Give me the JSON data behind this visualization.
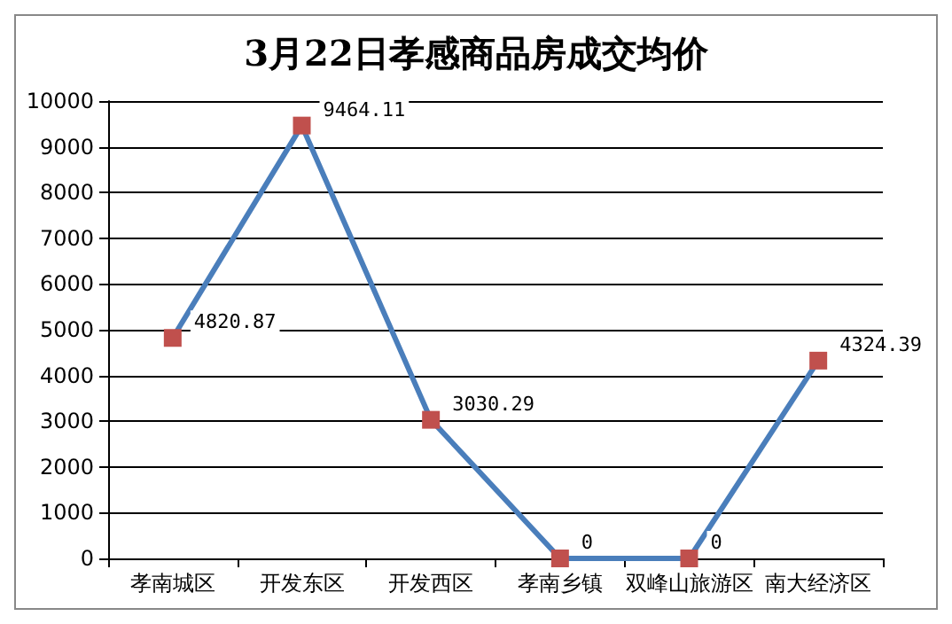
{
  "chart_data": {
    "type": "line",
    "title": "3月22日孝感商品房成交均价",
    "categories": [
      "孝南城区",
      "开发东区",
      "开发西区",
      "孝南乡镇",
      "双峰山旅游区",
      "南大经济区"
    ],
    "series": [
      {
        "color": "#4a7ebb",
        "colors": [
          "#c0504d",
          "#c0504d",
          "#c0504d",
          "#c0504d",
          "#c0504d",
          "#c0504d"
        ],
        "values": [
          4820.87,
          9464.11,
          3030.29,
          0,
          0,
          4324.39
        ]
      }
    ],
    "ylim": [
      0,
      10000
    ],
    "yticks": [
      0,
      1000,
      2000,
      3000,
      4000,
      5000,
      6000,
      7000,
      8000,
      9000,
      10000
    ],
    "grid": "y",
    "marker": "square",
    "line_style": "solid",
    "data_labels": true
  }
}
